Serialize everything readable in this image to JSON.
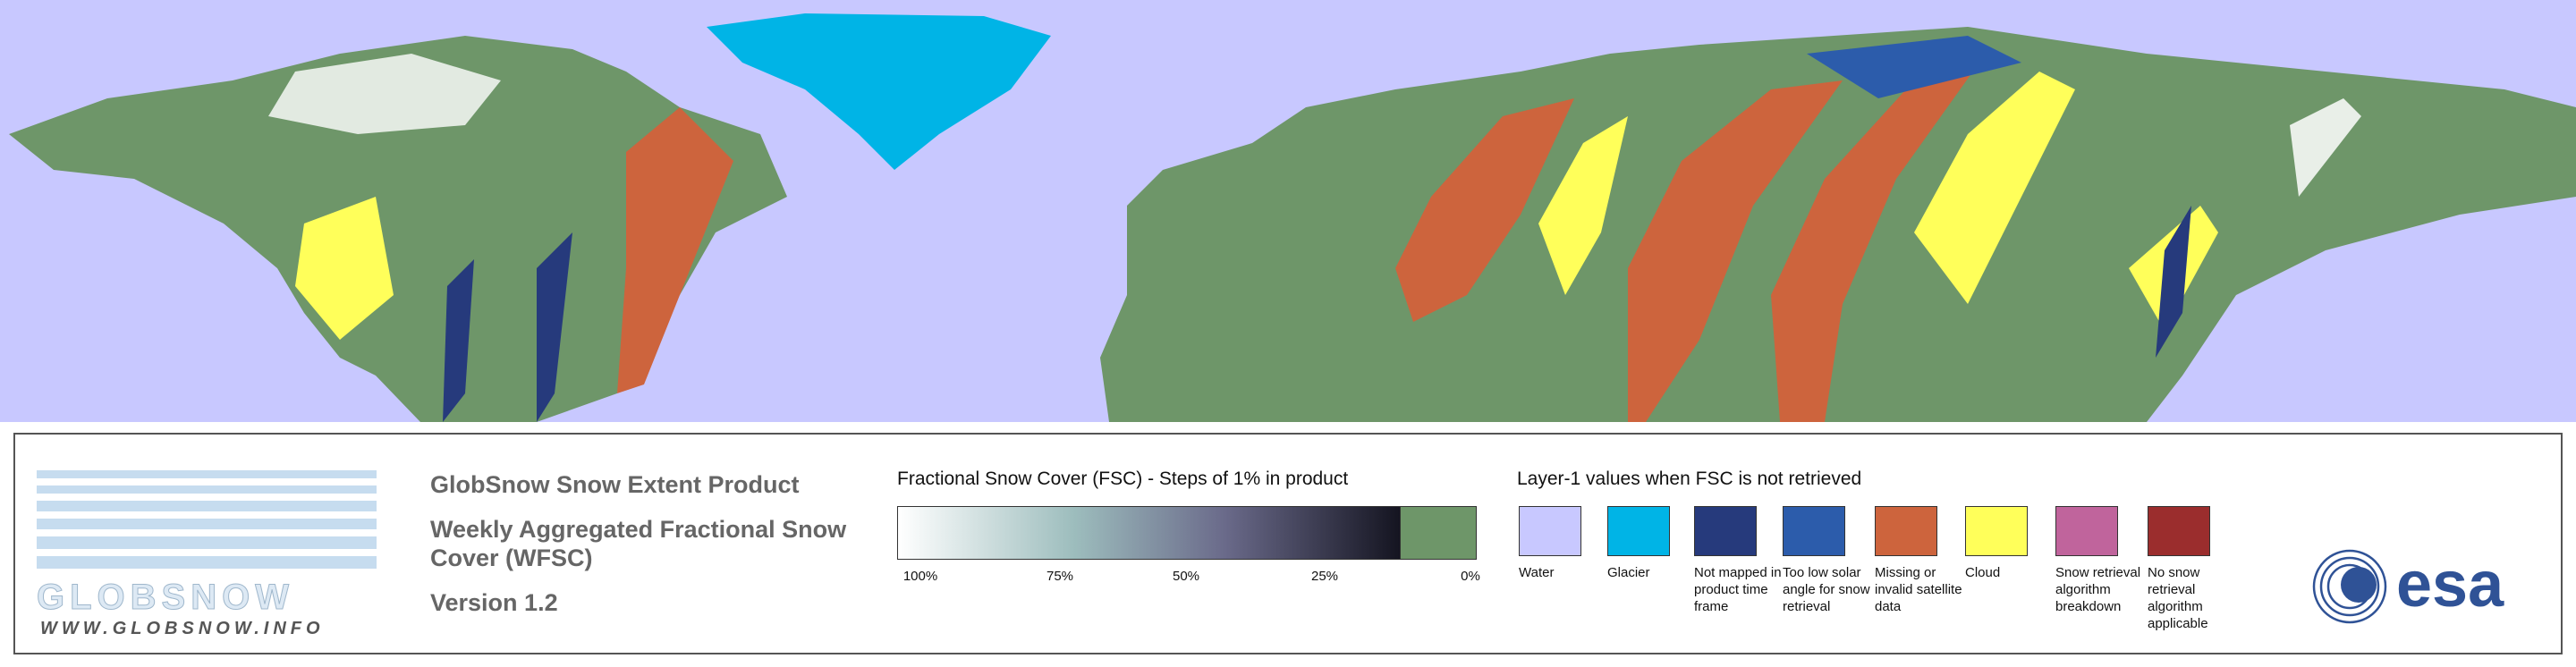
{
  "logo": {
    "name": "GLOBSNOW",
    "url": "WWW.GLOBSNOW.INFO"
  },
  "header": {
    "title": "GlobSnow Snow Extent Product",
    "subtitle": "Weekly Aggregated Fractional Snow Cover (WFSC)",
    "version": "Version 1.2"
  },
  "fsc_legend": {
    "title": "Fractional Snow Cover (FSC) - Steps of 1% in product",
    "ticks": [
      "100%",
      "75%",
      "50%",
      "25%",
      "0%"
    ]
  },
  "layer1_legend": {
    "title": "Layer-1 values when FSC is not retrieved",
    "items": [
      {
        "label": "Water",
        "color": "#c8c8ff"
      },
      {
        "label": "Glacier",
        "color": "#00b4e6"
      },
      {
        "label": "Not mapped in product time frame",
        "color": "#263a7c"
      },
      {
        "label": "Too low solar angle for snow retrieval",
        "color": "#2c5cab"
      },
      {
        "label": "Missing or invalid satellite data",
        "color": "#cd643d"
      },
      {
        "label": "Cloud",
        "color": "#ffff5a"
      },
      {
        "label": "Snow retrieval algorithm breakdown",
        "color": "#c0649c"
      },
      {
        "label": "No snow retrieval algorithm applicable",
        "color": "#9b2d2d"
      }
    ]
  },
  "agency_logo": "esa"
}
